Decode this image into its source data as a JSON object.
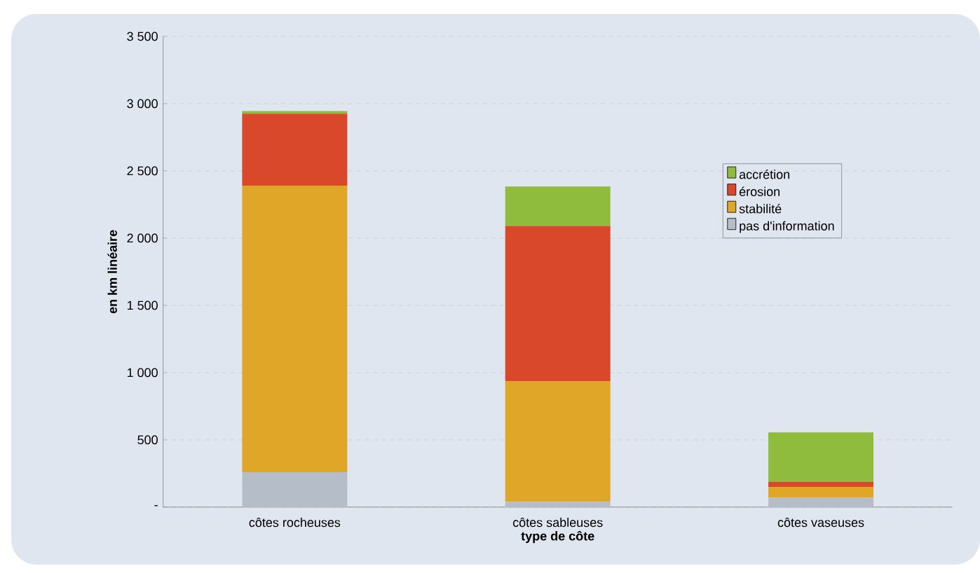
{
  "chart_data": {
    "type": "bar",
    "stacked": true,
    "xlabel": "type de côte",
    "ylabel": "en km linéaire",
    "categories": [
      "côtes rocheuses",
      "côtes sableuses",
      "côtes vaseuses"
    ],
    "series": [
      {
        "name": "pas d'information",
        "color": "#b5bec8",
        "values": [
          260,
          40,
          70
        ]
      },
      {
        "name": "stabilité",
        "color": "#e0a628",
        "values": [
          2130,
          897,
          80
        ]
      },
      {
        "name": "érosion",
        "color": "#d9482a",
        "values": [
          535,
          1153,
          38
        ]
      },
      {
        "name": "accrétion",
        "color": "#8fbc3c",
        "values": [
          20,
          293,
          367
        ]
      }
    ],
    "ylim": [
      0,
      3500
    ],
    "yticks": [
      {
        "value": 0,
        "label": "-"
      },
      500,
      {
        "value": 1000,
        "label": "1 000"
      },
      {
        "value": 1500,
        "label": "1 500"
      },
      {
        "value": 2000,
        "label": "2 000"
      },
      {
        "value": 2500,
        "label": "2 500"
      },
      {
        "value": 3000,
        "label": "3 000"
      },
      {
        "value": 3500,
        "label": "3 500"
      }
    ],
    "grid": "y",
    "legend": "right"
  }
}
